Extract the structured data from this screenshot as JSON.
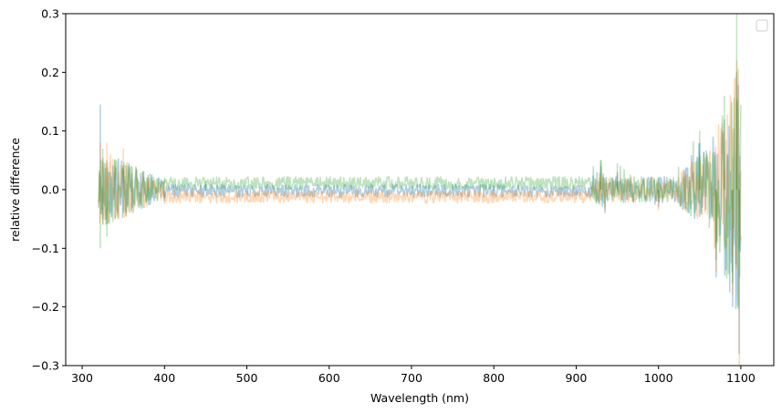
{
  "chart_data": {
    "type": "line",
    "xlabel": "Wavelength (nm)",
    "ylabel": "relative difference",
    "xlim": [
      280,
      1140
    ],
    "ylim": [
      -0.3,
      0.3
    ],
    "x_ticks": [
      300,
      400,
      500,
      600,
      700,
      800,
      900,
      1000,
      1100
    ],
    "x_tick_labels": [
      "300",
      "400",
      "500",
      "600",
      "700",
      "800",
      "900",
      "1000",
      "1100"
    ],
    "y_ticks": [
      -0.3,
      -0.2,
      -0.1,
      0.0,
      0.1,
      0.2,
      0.3
    ],
    "y_tick_labels": [
      "−0.3",
      "−0.2",
      "−0.1",
      "0.0",
      "0.1",
      "0.2",
      "0.3"
    ],
    "grid": false,
    "legend": "upper right, empty",
    "series": [
      {
        "color": "#1f77b4",
        "alpha": 0.35,
        "x": [
          320,
          322,
          325,
          330,
          340,
          350,
          360,
          380,
          400,
          450,
          500,
          600,
          700,
          800,
          900,
          930,
          935,
          950,
          1000,
          1050,
          1070,
          1080,
          1090,
          1095,
          1098,
          1100
        ],
        "y": [
          0.0,
          0.145,
          -0.05,
          0.05,
          -0.05,
          0.04,
          -0.035,
          0.025,
          -0.02,
          0.01,
          -0.01,
          0.008,
          -0.008,
          0.008,
          -0.01,
          0.04,
          -0.04,
          0.03,
          -0.03,
          0.08,
          -0.15,
          0.12,
          -0.2,
          0.15,
          -0.28,
          0.0
        ]
      },
      {
        "color": "#ff7f0e",
        "alpha": 0.3,
        "x": [
          320,
          322,
          325,
          330,
          340,
          350,
          360,
          380,
          400,
          450,
          500,
          600,
          700,
          800,
          900,
          930,
          935,
          950,
          1000,
          1050,
          1070,
          1080,
          1090,
          1095,
          1098,
          1100
        ],
        "y": [
          0.0,
          0.08,
          -0.06,
          0.08,
          -0.05,
          0.07,
          -0.03,
          0.02,
          -0.025,
          -0.012,
          -0.015,
          -0.012,
          -0.012,
          -0.015,
          -0.015,
          0.03,
          -0.035,
          0.025,
          -0.035,
          0.06,
          -0.14,
          0.1,
          -0.18,
          0.22,
          -0.3,
          0.0
        ]
      },
      {
        "color": "#2ca02c",
        "alpha": 0.3,
        "x": [
          320,
          322,
          325,
          330,
          340,
          350,
          360,
          380,
          400,
          450,
          500,
          600,
          700,
          800,
          900,
          930,
          935,
          950,
          1000,
          1050,
          1070,
          1080,
          1090,
          1095,
          1098,
          1100
        ],
        "y": [
          0.0,
          -0.1,
          0.07,
          -0.08,
          0.05,
          -0.04,
          0.04,
          -0.02,
          0.02,
          0.015,
          0.012,
          0.012,
          0.012,
          0.012,
          0.014,
          0.05,
          -0.03,
          0.045,
          -0.02,
          0.1,
          -0.12,
          0.16,
          -0.16,
          0.3,
          -0.1,
          0.0
        ]
      }
    ]
  }
}
